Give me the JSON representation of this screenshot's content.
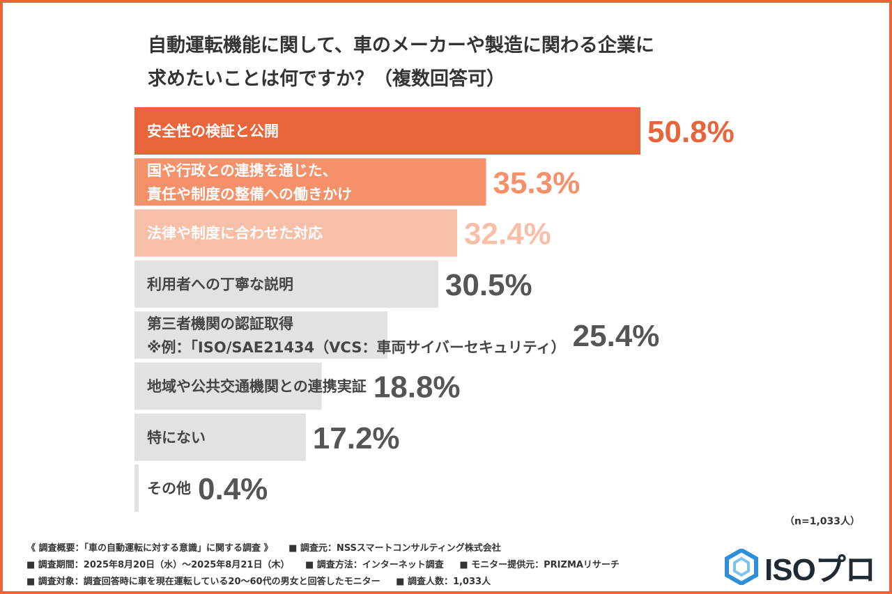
{
  "title": {
    "line1": "自動運転機能に関して、車のメーカーや製造に関わる企業に",
    "line2": "求めたいことは何ですか？（複数回答可）"
  },
  "chart_data": {
    "type": "bar",
    "orientation": "horizontal",
    "title": "自動運転機能に関して、車のメーカーや製造に関わる企業に求めたいことは何ですか？（複数回答可）",
    "unit": "%",
    "categories": [
      [
        "安全性の検証と公開"
      ],
      [
        "国や行政との連携を通じた、",
        "責任や制度の整備への働きかけ"
      ],
      [
        "法律や制度に合わせた対応"
      ],
      [
        "利用者への丁寧な説明"
      ],
      [
        "第三者機関の認証取得",
        "※例：「ISO/SAE21434（VCS：車両サイバーセキュリティ）"
      ],
      [
        "地域や公共交通機関との連携実証"
      ],
      [
        "特にない"
      ],
      [
        "その他"
      ]
    ],
    "values": [
      50.8,
      35.3,
      32.4,
      30.5,
      25.4,
      18.8,
      17.2,
      0.4
    ],
    "value_labels": [
      "50.8%",
      "35.3%",
      "32.4%",
      "30.5%",
      "25.4%",
      "18.8%",
      "17.2%",
      "0.4%"
    ],
    "bar_colors": [
      "#e8643a",
      "#f4906a",
      "#f8bfa8",
      "#e2e2e2",
      "#e2e2e2",
      "#e2e2e2",
      "#e2e2e2",
      "#e2e2e2"
    ],
    "label_colors": [
      "#ffffff",
      "#ffffff",
      "#ffffff",
      "#444444",
      "#444444",
      "#444444",
      "#444444",
      "#444444"
    ],
    "value_colors": [
      "#e8643a",
      "#f4906a",
      "#f8bfa8",
      "#555555",
      "#555555",
      "#555555",
      "#555555",
      "#555555"
    ],
    "xlim": [
      0,
      50.8
    ]
  },
  "n_note": "（n=1,033人）",
  "footer": {
    "row1": [
      "《 調査概要：「車の自動運転に対する意識」に関する調査 》",
      "■ 調査元：NSSスマートコンサルティング株式会社"
    ],
    "row2": [
      "■ 調査期間：2025年8月20日（水）～2025年8月21日（木）",
      "■ 調査方法：インターネット調査",
      "■ モニター提供元：PRIZMAリサーチ"
    ],
    "row3": [
      "■ 調査対象：調査回答時に車を現在運転している20～60代の男女と回答したモニター",
      "■ 調査人数：1,033人"
    ]
  },
  "logo": {
    "text": "ISOプロ",
    "icon": "hexagon-logo-icon",
    "colors": {
      "outer": "#2e8ed8",
      "inner": "#7cc3ef"
    }
  },
  "colors": {
    "frame": "#e8643a",
    "accent": "#e8643a"
  }
}
